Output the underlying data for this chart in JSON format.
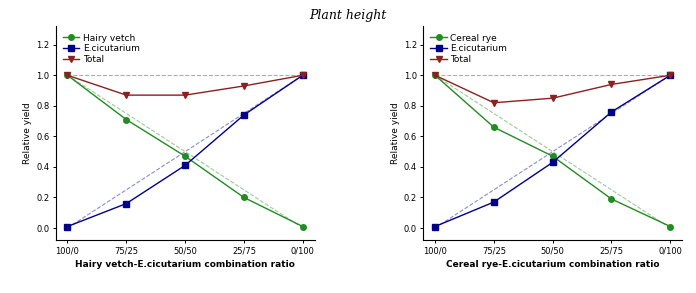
{
  "title": "Plant height",
  "x_labels": [
    "100/0",
    "75/25",
    "50/50",
    "25/75",
    "0/100"
  ],
  "x_positions": [
    0,
    1,
    2,
    3,
    4
  ],
  "left_plot": {
    "xlabel": "Hairy vetch-E.cicutarium combination ratio",
    "ylabel": "Relative yield",
    "legend": [
      "Hairy vetch",
      "E.cicutarium",
      "Total"
    ],
    "species1": [
      1.0,
      0.71,
      0.47,
      0.2,
      0.01
    ],
    "species2": [
      0.01,
      0.16,
      0.41,
      0.74,
      1.0
    ],
    "total": [
      1.0,
      0.87,
      0.87,
      0.93,
      1.0
    ],
    "expected_species1": [
      1.0,
      0.75,
      0.5,
      0.25,
      0.0
    ],
    "expected_species2": [
      0.0,
      0.25,
      0.5,
      0.75,
      1.0
    ],
    "expected_total": [
      1.0,
      1.0,
      1.0,
      1.0,
      1.0
    ],
    "color_species1": "#228B22",
    "color_species2": "#00008B",
    "color_total": "#8B2020",
    "marker_species1": "o",
    "marker_species2": "s",
    "marker_total": "v"
  },
  "right_plot": {
    "xlabel": "Cereal rye-E.cicutarium combination ratio",
    "ylabel": "Relative yield",
    "legend": [
      "Cereal rye",
      "E.cicutarium",
      "Total"
    ],
    "species1": [
      1.0,
      0.66,
      0.47,
      0.19,
      0.01
    ],
    "species2": [
      0.01,
      0.17,
      0.43,
      0.76,
      1.0
    ],
    "total": [
      1.0,
      0.82,
      0.85,
      0.94,
      1.0
    ],
    "expected_species1": [
      1.0,
      0.75,
      0.5,
      0.25,
      0.0
    ],
    "expected_species2": [
      0.0,
      0.25,
      0.5,
      0.75,
      1.0
    ],
    "expected_total": [
      1.0,
      1.0,
      1.0,
      1.0,
      1.0
    ],
    "color_species1": "#228B22",
    "color_species2": "#00008B",
    "color_total": "#8B2020",
    "marker_species1": "o",
    "marker_species2": "s",
    "marker_total": "v"
  },
  "ylim": [
    -0.08,
    1.32
  ],
  "yticks": [
    0.0,
    0.2,
    0.4,
    0.6,
    0.8,
    1.0,
    1.2
  ],
  "title_fontsize": 9,
  "label_fontsize": 6.5,
  "tick_fontsize": 6,
  "legend_fontsize": 6.5,
  "linewidth": 1.0,
  "markersize": 4,
  "dashed_linewidth": 0.8
}
